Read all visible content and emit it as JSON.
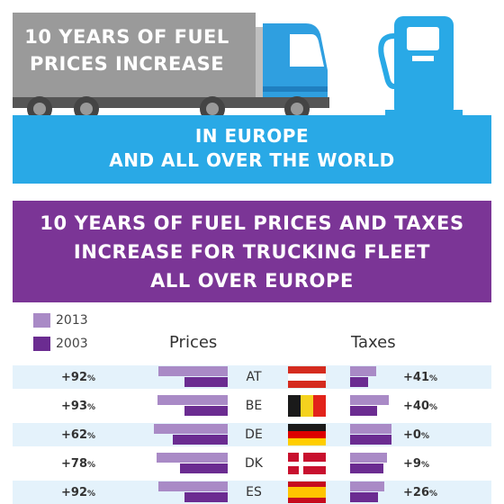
{
  "header": {
    "title_line1": "10 YEARS OF FUEL",
    "title_line2": "PRICES INCREASE",
    "subtitle_line1": "IN EUROPE",
    "subtitle_line2": "AND ALL OVER THE WORLD"
  },
  "section": {
    "title_line1": "10 YEARS OF FUEL PRICES AND TAXES",
    "title_line2": "INCREASE FOR TRUCKING FLEET",
    "title_line3": "ALL OVER EUROPE"
  },
  "legend": [
    {
      "label": "2013",
      "color": "#a98ac6"
    },
    {
      "label": "2003",
      "color": "#6b2c91"
    }
  ],
  "colors": {
    "truck_blue": "#29a9e6",
    "trailer_gray": "#9a9a9a",
    "purple": "#7b3596",
    "row_odd": "#e4f2fb",
    "row_even": "#ffffff"
  },
  "icons": [
    "truck-icon",
    "fuel-pump-icon",
    "flag-icon"
  ],
  "chart_data": {
    "type": "bar",
    "column_headers": {
      "prices": "Prices",
      "taxes": "Taxes"
    },
    "categories": [
      "AT",
      "BE",
      "DE",
      "DK",
      "ES"
    ],
    "prices_change_labels": [
      "+92",
      "+93",
      "+62",
      "+78",
      "+92"
    ],
    "taxes_change_labels": [
      "+41",
      "+40",
      "+0",
      "+9",
      "+26"
    ],
    "percent_sign": "%",
    "series": [
      {
        "name": "2013",
        "prices": [
          1.4,
          1.41,
          1.5,
          1.43,
          1.4
        ],
        "taxes": [
          0.34,
          0.5,
          0.54,
          0.48,
          0.45
        ]
      },
      {
        "name": "2003",
        "prices": [
          0.73,
          0.73,
          0.93,
          0.8,
          0.73
        ],
        "taxes": [
          0.24,
          0.35,
          0.54,
          0.44,
          0.36
        ]
      }
    ],
    "prices_lim": [
      0,
      1.6
    ],
    "taxes_lim": [
      0,
      0.6
    ],
    "flags": {
      "AT": [
        "#d52b1e",
        "#ffffff",
        "#d52b1e"
      ],
      "BE": [
        "#1a1a1a",
        "#f5d21e",
        "#e2231a"
      ],
      "DE": [
        "#1a1a1a",
        "#dd0000",
        "#ffce00"
      ],
      "DK": [
        "#c8102e",
        "#ffffff"
      ],
      "ES": [
        "#c60b1e",
        "#ffc400",
        "#c60b1e"
      ]
    }
  }
}
